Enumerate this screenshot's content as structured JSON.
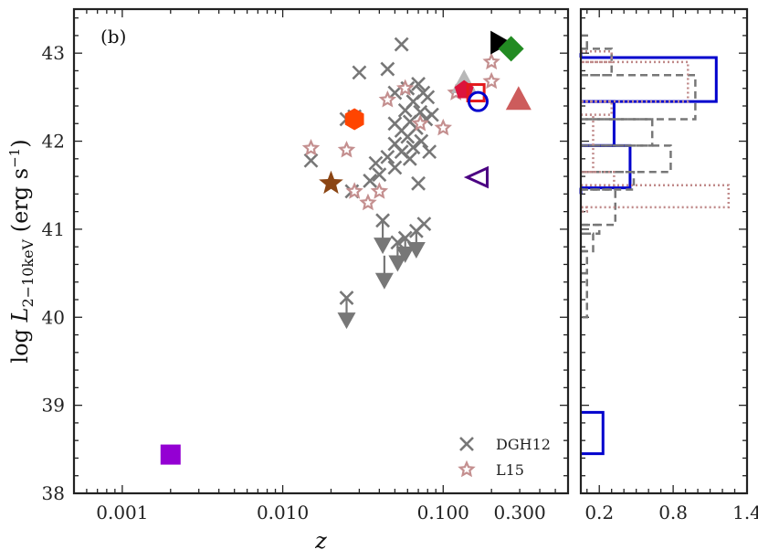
{
  "chart_data": [
    {
      "type": "scatter",
      "panel_label": "(b)",
      "xlabel": "z",
      "ylabel_main": "log ",
      "ylabel_L": "L",
      "ylabel_sub": "2−10keV",
      "ylabel_unit": " (erg s",
      "ylabel_unit_sup": "−1",
      "ylabel_unit_close": ")",
      "xscale": "log",
      "xlim": [
        0.0005,
        0.6
      ],
      "ylim": [
        38,
        43.5
      ],
      "xticks": [
        0.001,
        0.01,
        0.1,
        0.3
      ],
      "xtick_labels": [
        "0.001",
        "0.010",
        "0.100",
        "0.300"
      ],
      "yticks": [
        38,
        39,
        40,
        41,
        42,
        43
      ],
      "ytick_labels": [
        "38",
        "39",
        "40",
        "41",
        "42",
        "43"
      ],
      "legend": {
        "position": "bottom-right",
        "entries": [
          {
            "label": "DGH12",
            "marker": "x",
            "color": "#777777"
          },
          {
            "label": "L15",
            "marker": "star-open",
            "color": "#c48f8f"
          }
        ]
      },
      "series": [
        {
          "name": "DGH12",
          "marker": "x",
          "color": "#777777",
          "points": [
            [
              0.055,
              43.1
            ],
            [
              0.045,
              42.82
            ],
            [
              0.03,
              42.78
            ],
            [
              0.07,
              42.65
            ],
            [
              0.06,
              42.6
            ],
            [
              0.075,
              42.55
            ],
            [
              0.05,
              42.55
            ],
            [
              0.08,
              42.5
            ],
            [
              0.065,
              42.45
            ],
            [
              0.058,
              42.35
            ],
            [
              0.072,
              42.33
            ],
            [
              0.085,
              42.3
            ],
            [
              0.078,
              42.25
            ],
            [
              0.062,
              42.22
            ],
            [
              0.05,
              42.2
            ],
            [
              0.068,
              42.15
            ],
            [
              0.055,
              42.12
            ],
            [
              0.028,
              42.28
            ],
            [
              0.025,
              42.25
            ],
            [
              0.06,
              42.05
            ],
            [
              0.073,
              42.0
            ],
            [
              0.05,
              41.97
            ],
            [
              0.065,
              41.93
            ],
            [
              0.055,
              41.88
            ],
            [
              0.082,
              41.88
            ],
            [
              0.045,
              41.82
            ],
            [
              0.062,
              41.8
            ],
            [
              0.038,
              41.75
            ],
            [
              0.05,
              41.7
            ],
            [
              0.04,
              41.62
            ],
            [
              0.035,
              41.55
            ],
            [
              0.07,
              41.52
            ],
            [
              0.015,
              41.78
            ],
            [
              0.027,
              41.43
            ],
            [
              0.042,
              41.1
            ],
            [
              0.076,
              41.06
            ],
            [
              0.068,
              40.98
            ],
            [
              0.058,
              40.9
            ],
            [
              0.052,
              40.85
            ],
            [
              0.025,
              40.22
            ]
          ]
        },
        {
          "name": "DGH12 upper limits",
          "marker": "arrow-down",
          "color": "#777777",
          "points": [
            [
              0.042,
              41.1,
              40.8
            ],
            [
              0.043,
              40.7,
              40.4
            ],
            [
              0.052,
              40.85,
              40.6
            ],
            [
              0.058,
              40.9,
              40.7
            ],
            [
              0.068,
              40.98,
              40.75
            ],
            [
              0.025,
              40.22,
              39.95
            ]
          ]
        },
        {
          "name": "L15",
          "marker": "star-open",
          "color": "#c48f8f",
          "points": [
            [
              0.015,
              41.92
            ],
            [
              0.025,
              41.9
            ],
            [
              0.058,
              42.6
            ],
            [
              0.045,
              42.47
            ],
            [
              0.072,
              42.2
            ],
            [
              0.1,
              42.15
            ],
            [
              0.12,
              42.55
            ],
            [
              0.2,
              42.9
            ],
            [
              0.2,
              42.68
            ],
            [
              0.04,
              41.43
            ],
            [
              0.028,
              41.43
            ],
            [
              0.034,
              41.3
            ]
          ]
        },
        {
          "name": "Individual sources",
          "marker": "mixed",
          "points": [
            {
              "x": 0.002,
              "y": 38.44,
              "marker": "square",
              "color": "#9400d3"
            },
            {
              "x": 0.02,
              "y": 41.52,
              "marker": "star-filled",
              "color": "#8b4513"
            },
            {
              "x": 0.028,
              "y": 42.25,
              "marker": "hexagon",
              "color": "#ff4500"
            },
            {
              "x": 0.165,
              "y": 41.59,
              "marker": "triangle-left-open",
              "color": "#4b0082"
            },
            {
              "x": 0.225,
              "y": 43.12,
              "marker": "triangle-right",
              "color": "#000000"
            },
            {
              "x": 0.265,
              "y": 43.05,
              "marker": "diamond",
              "color": "#228b22"
            },
            {
              "x": 0.295,
              "y": 42.48,
              "marker": "triangle-up",
              "color": "#cd5c5c"
            },
            {
              "x": 0.135,
              "y": 42.67,
              "marker": "triangle-up",
              "color": "#b8b8b8"
            },
            {
              "x": 0.135,
              "y": 42.58,
              "marker": "pentagon",
              "color": "#dc143c"
            },
            {
              "x": 0.16,
              "y": 42.55,
              "marker": "square-open",
              "color": "#e31a1c"
            },
            {
              "x": 0.165,
              "y": 42.45,
              "marker": "circle-open",
              "color": "#0000cd"
            }
          ]
        }
      ]
    },
    {
      "type": "histogram",
      "orientation": "horizontal",
      "xlim": [
        0.05,
        1.4
      ],
      "ylim": [
        38,
        43.5
      ],
      "xticks": [
        0.2,
        0.8,
        1.4
      ],
      "xtick_labels": [
        "0.2",
        "0.8",
        "1.4"
      ],
      "series": [
        {
          "name": "blue",
          "color": "#0000cd",
          "linestyle": "solid",
          "bins": [
            [
              42.95,
              43.0,
              0.0
            ],
            [
              42.45,
              42.95,
              1.15
            ],
            [
              41.95,
              42.45,
              0.32
            ],
            [
              41.47,
              41.95,
              0.45
            ],
            [
              41.4,
              41.47,
              0.05
            ],
            [
              38.45,
              38.92,
              0.23
            ]
          ]
        },
        {
          "name": "DGH12",
          "color": "#777777",
          "linestyle": "dashed",
          "bins": [
            [
              43.2,
              43.05,
              0.1
            ],
            [
              43.05,
              42.75,
              0.3
            ],
            [
              42.75,
              42.25,
              0.98
            ],
            [
              42.25,
              41.95,
              0.63
            ],
            [
              41.95,
              41.65,
              0.78
            ],
            [
              41.65,
              41.45,
              0.48
            ],
            [
              41.45,
              41.05,
              0.33
            ],
            [
              41.05,
              40.95,
              0.2
            ],
            [
              40.95,
              40.75,
              0.15
            ],
            [
              40.75,
              40.5,
              0.1
            ],
            [
              40.5,
              40.0,
              0.1
            ]
          ]
        },
        {
          "name": "L15",
          "color": "#c08a8a",
          "linestyle": "dotted",
          "bins": [
            [
              43.02,
              42.9,
              0.3
            ],
            [
              42.9,
              42.45,
              0.92
            ],
            [
              42.45,
              42.3,
              0.3
            ],
            [
              42.3,
              41.65,
              0.15
            ],
            [
              41.65,
              41.5,
              0.32
            ],
            [
              41.5,
              41.25,
              1.25
            ],
            [
              41.25,
              41.2,
              0.1
            ]
          ]
        }
      ]
    }
  ]
}
